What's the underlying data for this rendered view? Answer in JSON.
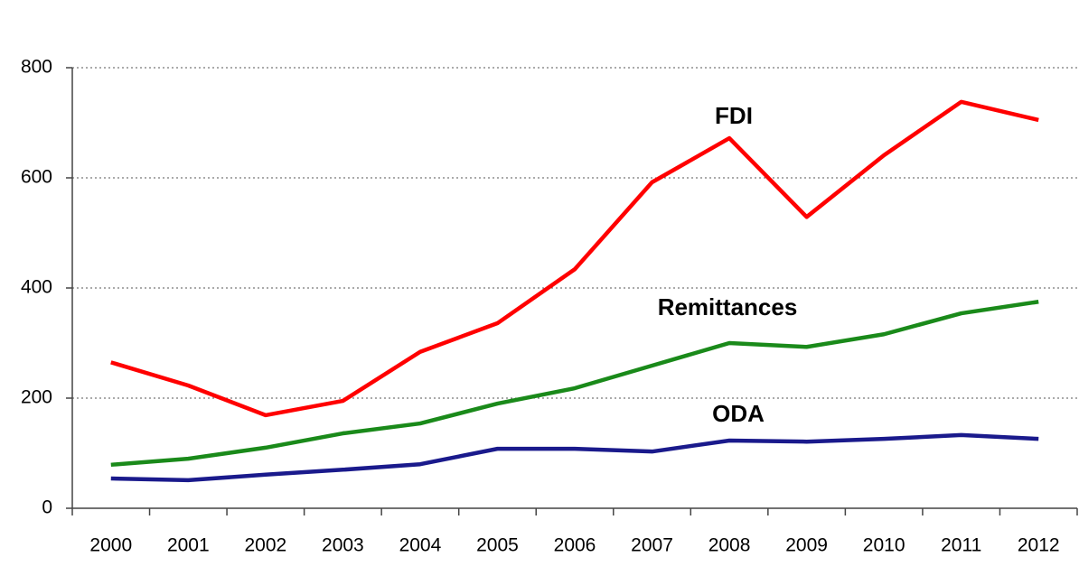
{
  "chart_data": {
    "type": "line",
    "categories": [
      "2000",
      "2001",
      "2002",
      "2003",
      "2004",
      "2005",
      "2006",
      "2007",
      "2008",
      "2009",
      "2010",
      "2011",
      "2012"
    ],
    "series": [
      {
        "name": "FDI",
        "color": "#ff0000",
        "values": [
          265,
          223,
          169,
          195,
          284,
          336,
          434,
          592,
          672,
          529,
          641,
          738,
          705
        ]
      },
      {
        "name": "Remittances",
        "color": "#1a8a1a",
        "values": [
          79,
          90,
          110,
          136,
          154,
          190,
          218,
          259,
          300,
          293,
          316,
          354,
          375
        ]
      },
      {
        "name": "ODA",
        "color": "#1a1a8c",
        "values": [
          54,
          51,
          61,
          70,
          80,
          108,
          108,
          103,
          123,
          121,
          126,
          133,
          126
        ]
      }
    ],
    "ylim": [
      0,
      800
    ],
    "yticks": [
      0,
      200,
      400,
      600,
      800
    ],
    "grid": true
  }
}
